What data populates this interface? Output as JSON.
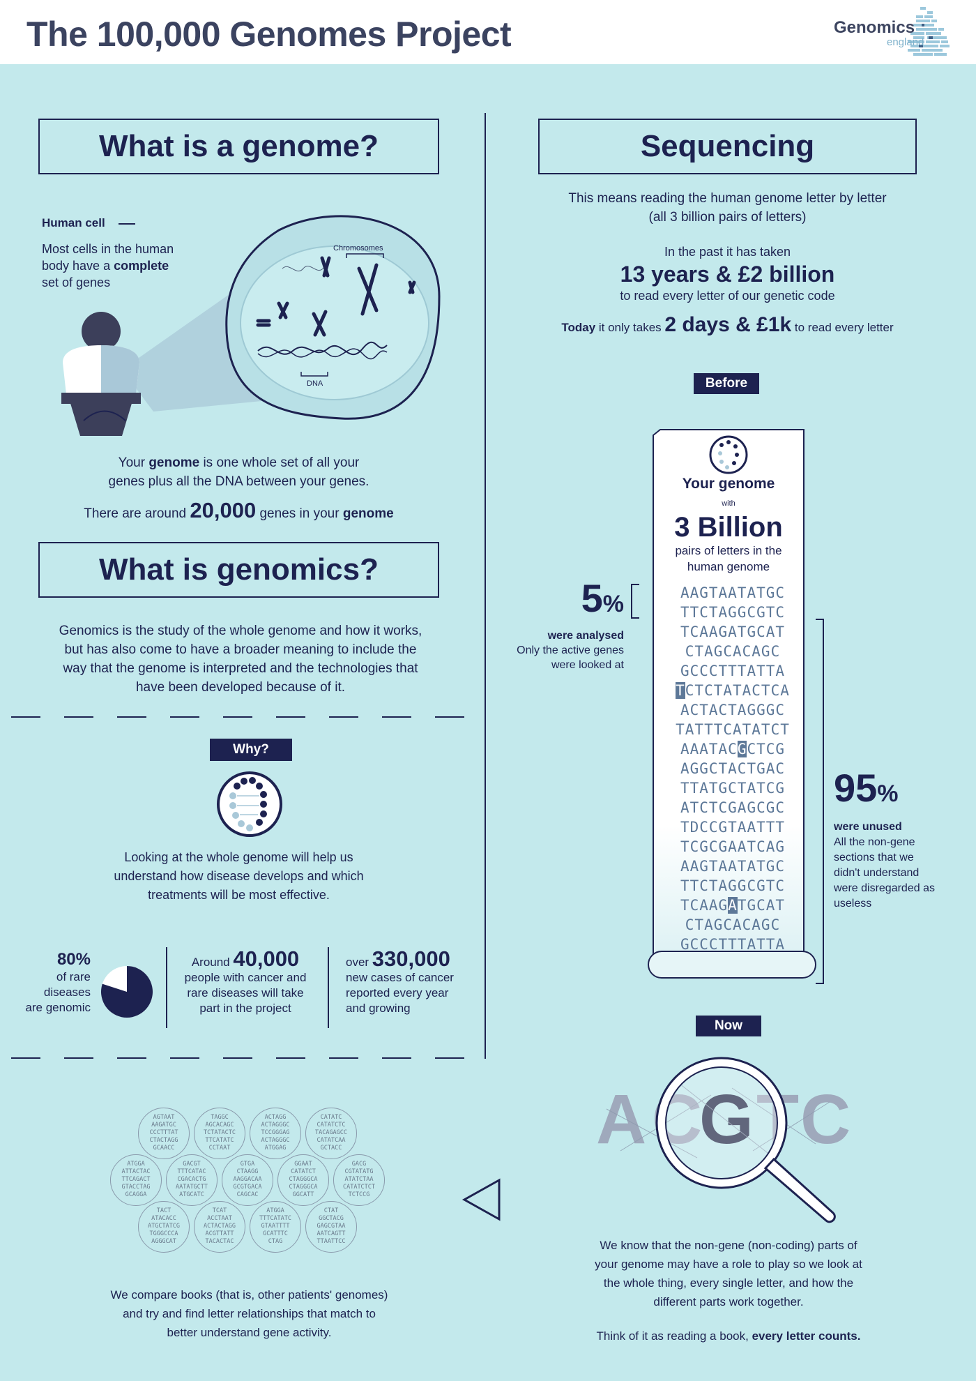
{
  "header": {
    "title": "The 100,000 Genomes Project",
    "logo_word": "Genomics",
    "logo_sub": "england"
  },
  "genome": {
    "heading": "What is a genome?",
    "cell_label": "Human cell",
    "cell_text_1": "Most cells in the human",
    "cell_text_2_pre": "body have a ",
    "cell_text_2_bold": "complete",
    "cell_text_3": "set of genes",
    "chromosomes_label": "Chromosomes",
    "dna_label": "DNA",
    "desc_pre": "Your ",
    "desc_bold": "genome",
    "desc_post": " is one whole set of all your",
    "desc_line2": "genes plus all the DNA between your genes.",
    "count_pre": "There are around ",
    "count_num": "20,000",
    "count_mid": " genes in your ",
    "count_bold": "genome"
  },
  "genomics": {
    "heading": "What is genomics?",
    "lines": [
      "Genomics is the study of the whole genome and how it works,",
      "but has also come to have a broader meaning to include the",
      "way that the genome is interpreted and the technologies that",
      "have been developed because of it."
    ]
  },
  "why": {
    "tag": "Why?",
    "lines": [
      "Looking at the whole genome will help us",
      "understand how disease develops and which",
      "treatments will be most effective."
    ]
  },
  "stats": {
    "rare_pct": "80%",
    "rare_fraction": 0.8,
    "rare_lines": [
      "of rare",
      "diseases",
      "are genomic"
    ],
    "people_pre": "Around ",
    "people_num": "40,000",
    "people_lines": [
      "people with cancer and",
      "rare diseases will take",
      "part in the project"
    ],
    "cases_pre": "over ",
    "cases_num": "330,000",
    "cases_lines": [
      "new cases of cancer",
      "reported every year",
      "and growing"
    ]
  },
  "sequencing": {
    "heading": "Sequencing",
    "line1": "This means reading the human genome letter by letter",
    "line2": "(all 3 billion pairs of letters)",
    "past_pre": "In the past it has taken",
    "past_big": "13 years & £2 billion",
    "past_post": "to read every letter of our genetic code",
    "today_bold": "Today",
    "today_mid": " it only takes ",
    "today_big": "2 days & £1k",
    "today_post": " to read every letter",
    "before_tag": "Before",
    "now_tag": "Now"
  },
  "scroll": {
    "your_genome": "Your genome",
    "with": "with",
    "billion": "3 Billion",
    "pairs_1": "pairs of letters in the",
    "pairs_2": "human genome",
    "sequence_lines": [
      "AAGTAATATGC",
      "TTCTAGGCGTC",
      "TCAAGATGCAT",
      "CTAGCACAGC",
      "GCCCTTTATTA",
      "TCTCTATACTCA",
      "ACTACTAGGGC",
      "TATTTCATATCT",
      "AAATACGCTCG",
      "AGGCTACTGAC",
      "TTATGCTATCG",
      "ATCTCGAGCGC",
      "TDCCGTAATTT",
      "TCGCGAATCAG",
      "AAGTAATATGC",
      "TTCTAGGCGTC",
      "TCAAGATGCAT",
      "CTAGCACAGC",
      "GCCCTTTATTA"
    ]
  },
  "analysed": {
    "pct_num": "5",
    "pct_sign": "%",
    "bold": "were analysed",
    "lines": [
      "Only the active genes",
      "were looked at"
    ]
  },
  "unused": {
    "pct_num": "95",
    "pct_sign": "%",
    "bold": "were unused",
    "lines": [
      "All the non-gene",
      "sections that we",
      "didn't understand",
      "were disregarded as",
      "useless"
    ]
  },
  "now": {
    "letters": [
      "A",
      "C",
      "G",
      "T",
      "C"
    ],
    "lines": [
      "We know that the non-gene (non-coding) parts of",
      "your genome may have a role to play so we look at",
      "the whole thing, every single letter, and how the",
      "different parts work together."
    ],
    "think_pre": "Think of it as reading a book, ",
    "think_bold": "every letter counts."
  },
  "compare": {
    "lines": [
      "We compare books (that is, other patients' genomes)",
      "and try and find letter relationships that match to",
      "better understand gene activity."
    ],
    "bubbles": [
      "AGTAAT\nAAGATGC\nCCCTTTAT\nCTACTAGG\nGCAACC",
      "TAGGC\nAGCACAGC\nTCTATACTC\nTTCATATC\nCCTAAT",
      "ACTAGG\nACTAGGGC\nTCCGGGAG\nACTAGGGC\nATGGAG",
      "CATATC\nCATATCTC\nTACAGAGCC\nCATATCAA\nGCTACC",
      "ATGGA\nATTACTAC\nTTCAGACT\nGTACCTAG\nGCAGGA",
      "GACGT\nTTTCATAC\nCGACACTG\nAATATGCTT\nATGCATC",
      "GTGA\nCTAAGG\nAAGGACAA\nGCGTGACA\nCAGCAC",
      "GGAAT\nCATATCT\nCTAGGGCA\nCTAGGGCA\nGGCATT",
      "GACG\nCGTATATG\nATATCTAA\nCATATCTCT\nTCTCCG",
      "TACT\nATACACC\nATGCTATCG\nTGGGCCCA\nAGGGCAT",
      "TCAT\nACCTAAT\nACTACTAGG\nACGTTATT\nTACACTAC",
      "ATGGA\nTTTCATATC\nGTAATTTT\nGCATTTC\nCTAG",
      "CTAT\nGGCTACG\nGAGCGTAA\nAATCAGTT\nTTAATTCC"
    ]
  }
}
